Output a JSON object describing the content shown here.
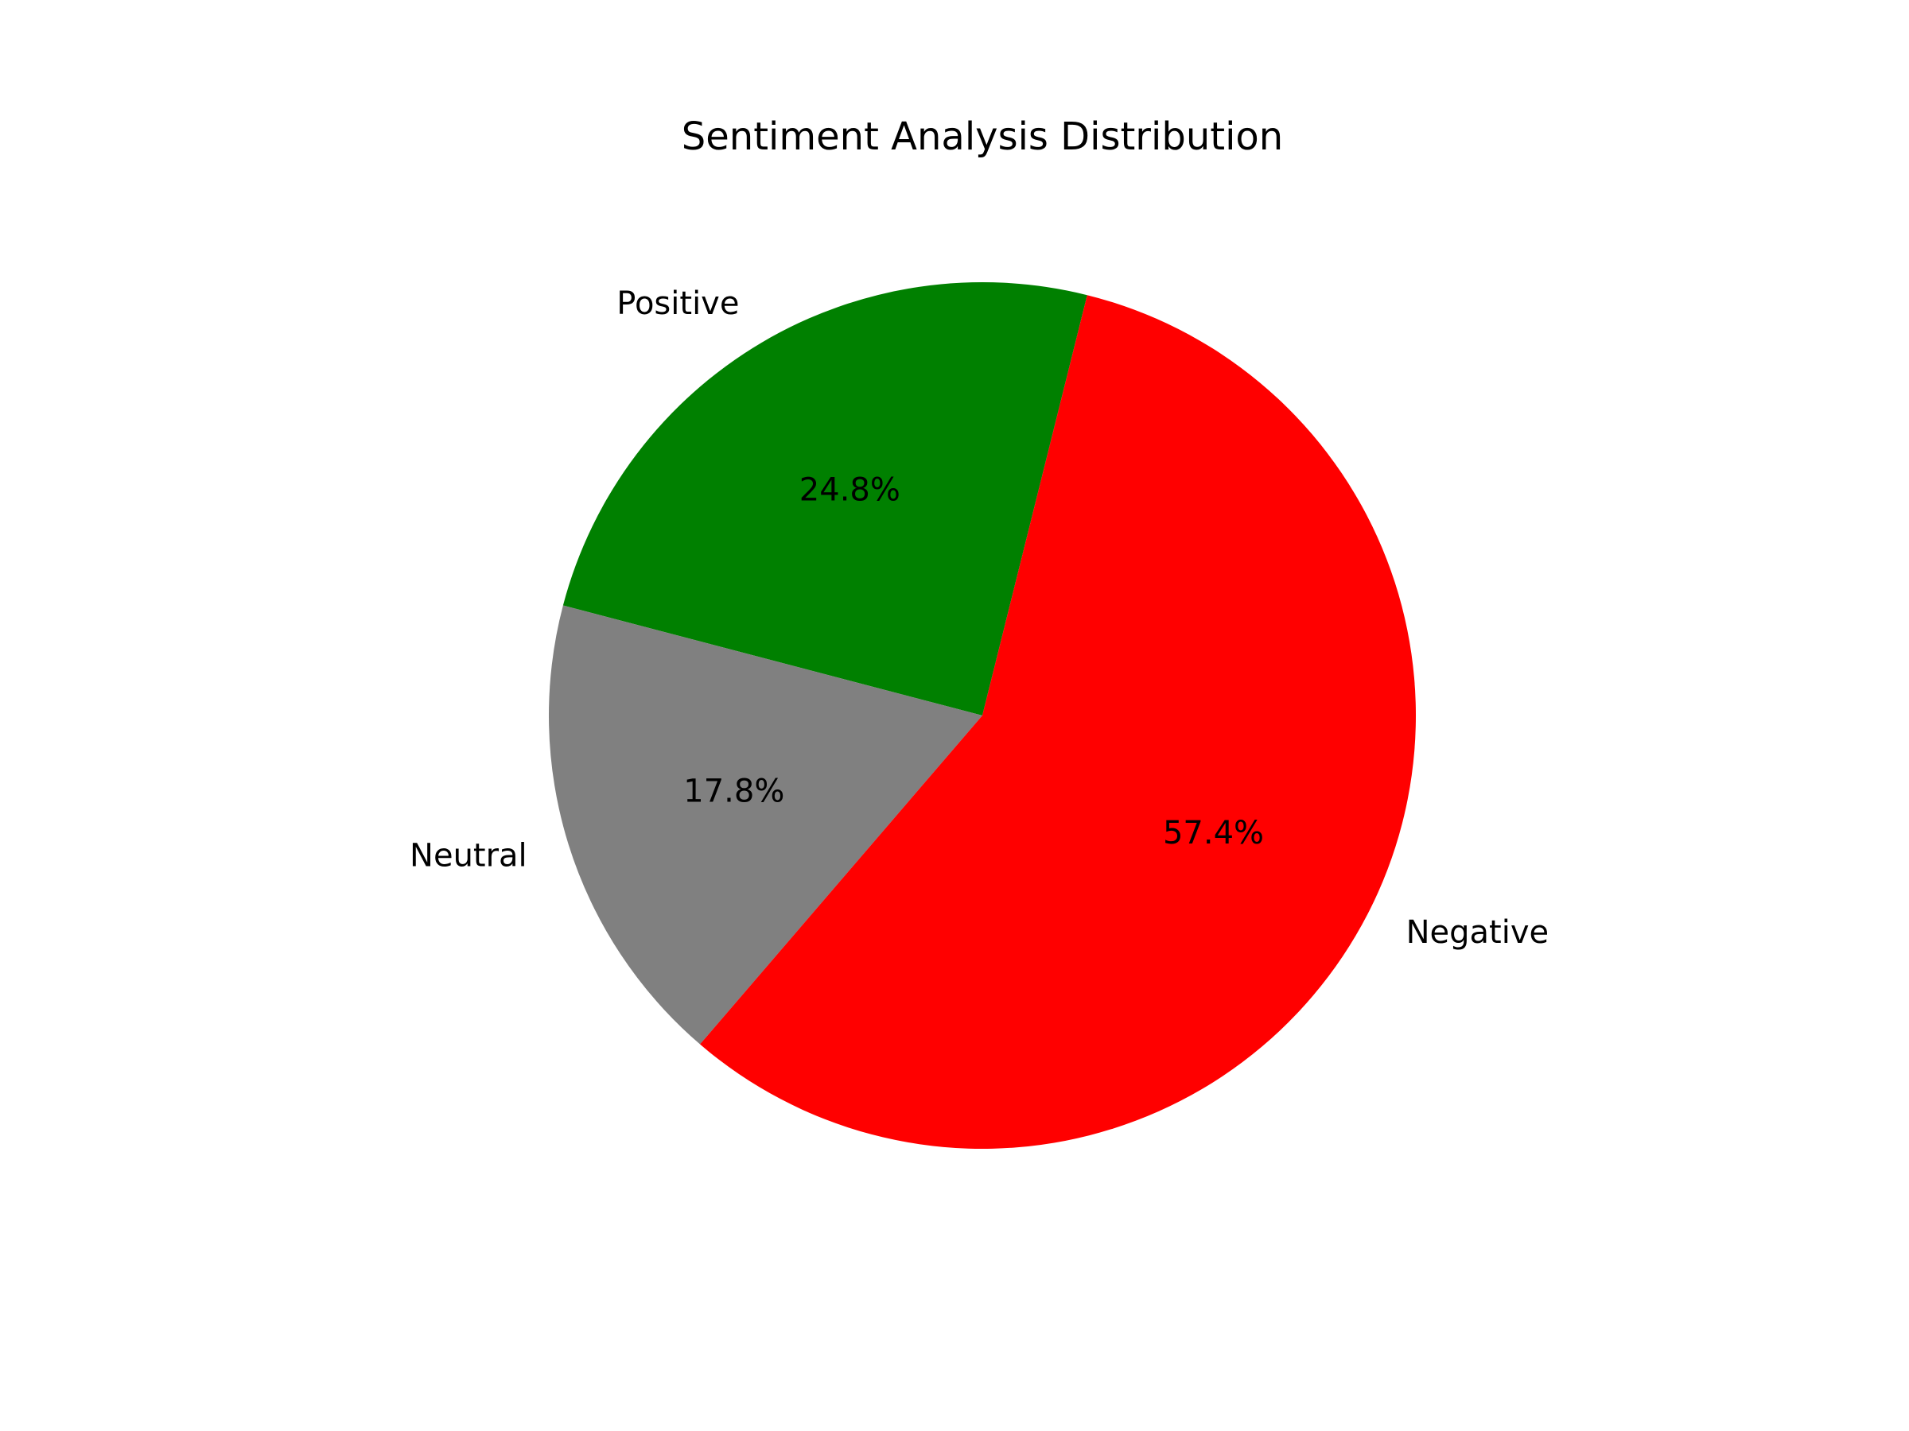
{
  "chart_data": {
    "type": "pie",
    "title": "Sentiment Analysis Distribution",
    "categories": [
      "Positive",
      "Neutral",
      "Negative"
    ],
    "values": [
      24.8,
      17.8,
      57.4
    ],
    "percent_labels": [
      "24.8%",
      "17.8%",
      "57.4%"
    ],
    "colors": [
      "#008000",
      "#808080",
      "#ff0000"
    ],
    "legend": "none",
    "wedge_labels": "outside",
    "percent_label_position": "inside"
  }
}
